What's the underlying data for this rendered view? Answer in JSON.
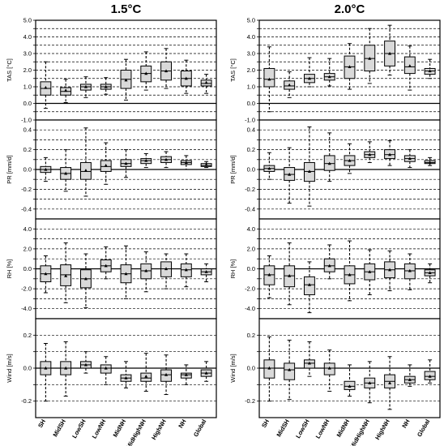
{
  "chart_data": {
    "type": "boxplot",
    "categories": [
      "SH",
      "MidSH",
      "LowSH",
      "LowNH",
      "MidNH",
      "MidHighNH",
      "HighNH",
      "NH",
      "Global"
    ],
    "columns": [
      {
        "title": "1.5°C",
        "panels": [
          {
            "ylabel": "TAS [°C]",
            "ylim": [
              -1.0,
              5.0
            ],
            "ticks": [
              -1.0,
              -0.5,
              0.0,
              0.5,
              1.0,
              1.5,
              2.0,
              2.5,
              3.0,
              3.5,
              4.0,
              4.5,
              5.0
            ],
            "tick_labels": [
              "-1.0",
              "",
              "0.0",
              "",
              "1.0",
              "",
              "2.0",
              "",
              "3.0",
              "",
              "4.0",
              "",
              "5.0"
            ],
            "boxes": [
              {
                "wlo": -0.3,
                "q1": 0.5,
                "med": 0.9,
                "q3": 1.3,
                "whi": 2.5,
                "mean": 0.95
              },
              {
                "wlo": 0.05,
                "q1": 0.5,
                "med": 0.72,
                "q3": 0.95,
                "whi": 1.45,
                "mean": 0.78
              },
              {
                "wlo": 0.35,
                "q1": 0.8,
                "med": 1.0,
                "q3": 1.15,
                "whi": 1.6,
                "mean": 1.0
              },
              {
                "wlo": 0.55,
                "q1": 0.85,
                "med": 1.0,
                "q3": 1.15,
                "whi": 1.55,
                "mean": 1.0
              },
              {
                "wlo": 0.2,
                "q1": 0.9,
                "med": 1.45,
                "q3": 2.0,
                "whi": 2.65,
                "mean": 1.4
              },
              {
                "wlo": 0.8,
                "q1": 1.3,
                "med": 1.8,
                "q3": 2.25,
                "whi": 3.1,
                "mean": 1.8
              },
              {
                "wlo": 0.9,
                "q1": 1.4,
                "med": 1.95,
                "q3": 2.5,
                "whi": 3.3,
                "mean": 1.95
              },
              {
                "wlo": 0.6,
                "q1": 1.05,
                "med": 1.5,
                "q3": 1.95,
                "whi": 2.6,
                "mean": 1.5
              },
              {
                "wlo": 0.6,
                "q1": 1.05,
                "med": 1.2,
                "q3": 1.4,
                "whi": 1.75,
                "mean": 1.25
              }
            ]
          },
          {
            "ylabel": "PR [mm/d]",
            "ylim": [
              -0.5,
              0.5
            ],
            "ticks": [
              -0.4,
              -0.3,
              -0.2,
              -0.1,
              0.0,
              0.1,
              0.2,
              0.3,
              0.4
            ],
            "tick_labels": [
              "-0.4",
              "",
              "-0.2",
              "",
              "0.0",
              "",
              "0.2",
              "",
              "0.4"
            ],
            "boxes": [
              {
                "wlo": -0.12,
                "q1": -0.03,
                "med": 0.0,
                "q3": 0.03,
                "whi": 0.12,
                "mean": 0.0
              },
              {
                "wlo": -0.22,
                "q1": -0.1,
                "med": -0.04,
                "q3": 0.02,
                "whi": 0.2,
                "mean": -0.04
              },
              {
                "wlo": -0.27,
                "q1": -0.1,
                "med": -0.02,
                "q3": 0.07,
                "whi": 0.42,
                "mean": -0.01
              },
              {
                "wlo": -0.15,
                "q1": -0.02,
                "med": 0.03,
                "q3": 0.09,
                "whi": 0.27,
                "mean": 0.04
              },
              {
                "wlo": -0.08,
                "q1": 0.03,
                "med": 0.06,
                "q3": 0.1,
                "whi": 0.2,
                "mean": 0.06
              },
              {
                "wlo": 0.02,
                "q1": 0.06,
                "med": 0.09,
                "q3": 0.11,
                "whi": 0.16,
                "mean": 0.09
              },
              {
                "wlo": 0.02,
                "q1": 0.07,
                "med": 0.1,
                "q3": 0.13,
                "whi": 0.18,
                "mean": 0.1
              },
              {
                "wlo": 0.0,
                "q1": 0.05,
                "med": 0.07,
                "q3": 0.09,
                "whi": 0.14,
                "mean": 0.07
              },
              {
                "wlo": 0.02,
                "q1": 0.03,
                "med": 0.04,
                "q3": 0.06,
                "whi": 0.08,
                "mean": 0.05
              }
            ]
          },
          {
            "ylabel": "RH [%]",
            "ylim": [
              -5.0,
              5.0
            ],
            "ticks": [
              -4.0,
              -3.0,
              -2.0,
              -1.0,
              0.0,
              1.0,
              2.0,
              3.0,
              4.0
            ],
            "tick_labels": [
              "-4.0",
              "",
              "-2.0",
              "",
              "0.0",
              "",
              "2.0",
              "",
              "4.0"
            ],
            "boxes": [
              {
                "wlo": -2.4,
                "q1": -1.3,
                "med": -0.5,
                "q3": 0.3,
                "whi": 1.3,
                "mean": -0.5
              },
              {
                "wlo": -3.4,
                "q1": -1.7,
                "med": -0.6,
                "q3": 0.4,
                "whi": 2.6,
                "mean": -0.7
              },
              {
                "wlo": -3.9,
                "q1": -1.9,
                "med": -1.0,
                "q3": -0.1,
                "whi": 1.5,
                "mean": -1.0
              },
              {
                "wlo": -1.0,
                "q1": -0.3,
                "med": 0.3,
                "q3": 0.9,
                "whi": 2.2,
                "mean": 0.3
              },
              {
                "wlo": -3.0,
                "q1": -1.4,
                "med": -0.5,
                "q3": 0.4,
                "whi": 2.3,
                "mean": -0.5
              },
              {
                "wlo": -2.3,
                "q1": -1.0,
                "med": -0.2,
                "q3": 0.5,
                "whi": 1.7,
                "mean": -0.2
              },
              {
                "wlo": -2.0,
                "q1": -0.8,
                "med": 0.0,
                "q3": 0.7,
                "whi": 1.5,
                "mean": 0.0
              },
              {
                "wlo": -1.8,
                "q1": -0.8,
                "med": -0.1,
                "q3": 0.5,
                "whi": 1.5,
                "mean": -0.1
              },
              {
                "wlo": -1.3,
                "q1": -0.6,
                "med": -0.3,
                "q3": 0.0,
                "whi": 0.5,
                "mean": -0.3
              }
            ]
          },
          {
            "ylabel": "Wind [m/s]",
            "ylim": [
              -0.3,
              0.3
            ],
            "ticks": [
              -0.2,
              -0.1,
              0.0,
              0.1,
              0.2
            ],
            "tick_labels": [
              "-0.2",
              "",
              "0.0",
              "",
              "0.2"
            ],
            "boxes": [
              {
                "wlo": -0.2,
                "q1": -0.04,
                "med": 0.0,
                "q3": 0.04,
                "whi": 0.15,
                "mean": 0.0
              },
              {
                "wlo": -0.17,
                "q1": -0.04,
                "med": 0.0,
                "q3": 0.04,
                "whi": 0.16,
                "mean": 0.0
              },
              {
                "wlo": -0.03,
                "q1": 0.0,
                "med": 0.02,
                "q3": 0.04,
                "whi": 0.1,
                "mean": 0.02
              },
              {
                "wlo": -0.1,
                "q1": -0.03,
                "med": 0.0,
                "q3": 0.02,
                "whi": 0.07,
                "mean": 0.0
              },
              {
                "wlo": -0.12,
                "q1": -0.08,
                "med": -0.06,
                "q3": -0.04,
                "whi": 0.04,
                "mean": -0.06
              },
              {
                "wlo": -0.14,
                "q1": -0.08,
                "med": -0.06,
                "q3": -0.03,
                "whi": 0.09,
                "mean": -0.05
              },
              {
                "wlo": -0.16,
                "q1": -0.08,
                "med": -0.04,
                "q3": -0.01,
                "whi": 0.08,
                "mean": -0.04
              },
              {
                "wlo": -0.1,
                "q1": -0.06,
                "med": -0.04,
                "q3": -0.03,
                "whi": 0.02,
                "mean": -0.04
              },
              {
                "wlo": -0.08,
                "q1": -0.05,
                "med": -0.03,
                "q3": -0.01,
                "whi": 0.04,
                "mean": -0.03
              }
            ]
          }
        ]
      },
      {
        "title": "2.0°C",
        "panels": [
          {
            "ylabel": "TAS [°C]",
            "ylim": [
              -1.0,
              5.0
            ],
            "ticks": [
              -1.0,
              -0.5,
              0.0,
              0.5,
              1.0,
              1.5,
              2.0,
              2.5,
              3.0,
              3.5,
              4.0,
              4.5,
              5.0
            ],
            "tick_labels": [
              "-1.0",
              "",
              "0.0",
              "",
              "1.0",
              "",
              "2.0",
              "",
              "3.0",
              "",
              "4.0",
              "",
              "5.0"
            ],
            "boxes": [
              {
                "wlo": -0.5,
                "q1": 1.0,
                "med": 1.45,
                "q3": 2.1,
                "whi": 3.4,
                "mean": 1.45
              },
              {
                "wlo": 0.35,
                "q1": 0.85,
                "med": 1.05,
                "q3": 1.35,
                "whi": 1.9,
                "mean": 1.1
              },
              {
                "wlo": 1.0,
                "q1": 1.25,
                "med": 1.5,
                "q3": 1.75,
                "whi": 2.75,
                "mean": 1.5
              },
              {
                "wlo": 1.05,
                "q1": 1.4,
                "med": 1.6,
                "q3": 1.8,
                "whi": 2.7,
                "mean": 1.6
              },
              {
                "wlo": 0.85,
                "q1": 1.5,
                "med": 2.2,
                "q3": 2.85,
                "whi": 3.6,
                "mean": 2.2
              },
              {
                "wlo": 1.2,
                "q1": 1.95,
                "med": 2.7,
                "q3": 3.5,
                "whi": 4.5,
                "mean": 2.7
              },
              {
                "wlo": 1.7,
                "q1": 2.25,
                "med": 3.0,
                "q3": 3.75,
                "whi": 4.7,
                "mean": 3.0
              },
              {
                "wlo": 0.8,
                "q1": 1.8,
                "med": 2.2,
                "q3": 2.8,
                "whi": 3.45,
                "mean": 2.25
              },
              {
                "wlo": 1.5,
                "q1": 1.75,
                "med": 1.95,
                "q3": 2.1,
                "whi": 2.65,
                "mean": 1.95
              }
            ]
          },
          {
            "ylabel": "PR [mm/d]",
            "ylim": [
              -0.5,
              0.5
            ],
            "ticks": [
              -0.4,
              -0.3,
              -0.2,
              -0.1,
              0.0,
              0.1,
              0.2,
              0.3,
              0.4
            ],
            "tick_labels": [
              "-0.4",
              "",
              "-0.2",
              "",
              "0.0",
              "",
              "0.2",
              "",
              "0.4"
            ],
            "boxes": [
              {
                "wlo": -0.1,
                "q1": -0.02,
                "med": 0.01,
                "q3": 0.04,
                "whi": 0.17,
                "mean": 0.01
              },
              {
                "wlo": -0.34,
                "q1": -0.11,
                "med": -0.05,
                "q3": 0.02,
                "whi": 0.22,
                "mean": -0.05
              },
              {
                "wlo": -0.37,
                "q1": -0.12,
                "med": -0.02,
                "q3": 0.07,
                "whi": 0.43,
                "mean": -0.02
              },
              {
                "wlo": -0.12,
                "q1": -0.01,
                "med": 0.06,
                "q3": 0.14,
                "whi": 0.37,
                "mean": 0.06
              },
              {
                "wlo": -0.04,
                "q1": 0.04,
                "med": 0.09,
                "q3": 0.14,
                "whi": 0.26,
                "mean": 0.09
              },
              {
                "wlo": 0.07,
                "q1": 0.12,
                "med": 0.15,
                "q3": 0.18,
                "whi": 0.28,
                "mean": 0.15
              },
              {
                "wlo": 0.04,
                "q1": 0.11,
                "med": 0.15,
                "q3": 0.2,
                "whi": 0.29,
                "mean": 0.15
              },
              {
                "wlo": 0.02,
                "q1": 0.08,
                "med": 0.11,
                "q3": 0.14,
                "whi": 0.2,
                "mean": 0.11
              },
              {
                "wlo": 0.04,
                "q1": 0.06,
                "med": 0.07,
                "q3": 0.09,
                "whi": 0.12,
                "mean": 0.07
              }
            ]
          },
          {
            "ylabel": "RH [%]",
            "ylim": [
              -5.0,
              5.0
            ],
            "ticks": [
              -4.0,
              -3.0,
              -2.0,
              -1.0,
              0.0,
              1.0,
              2.0,
              3.0,
              4.0
            ],
            "tick_labels": [
              "-4.0",
              "",
              "-2.0",
              "",
              "0.0",
              "",
              "2.0",
              "",
              "4.0"
            ],
            "boxes": [
              {
                "wlo": -2.9,
                "q1": -1.6,
                "med": -0.6,
                "q3": 0.3,
                "whi": 1.3,
                "mean": -0.6
              },
              {
                "wlo": -3.6,
                "q1": -1.8,
                "med": -0.7,
                "q3": 0.3,
                "whi": 2.6,
                "mean": -0.7
              },
              {
                "wlo": -4.4,
                "q1": -2.6,
                "med": -1.6,
                "q3": -0.8,
                "whi": 0.7,
                "mean": -1.6
              },
              {
                "wlo": -1.0,
                "q1": -0.3,
                "med": 0.3,
                "q3": 1.0,
                "whi": 2.4,
                "mean": 0.3
              },
              {
                "wlo": -3.2,
                "q1": -1.5,
                "med": -0.6,
                "q3": 0.3,
                "whi": 2.8,
                "mean": -0.6
              },
              {
                "wlo": -2.6,
                "q1": -1.1,
                "med": -0.3,
                "q3": 0.5,
                "whi": 1.9,
                "mean": -0.3
              },
              {
                "wlo": -2.2,
                "q1": -0.9,
                "med": -0.1,
                "q3": 0.7,
                "whi": 1.8,
                "mean": -0.1
              },
              {
                "wlo": -2.1,
                "q1": -1.0,
                "med": -0.2,
                "q3": 0.5,
                "whi": 1.5,
                "mean": -0.2
              },
              {
                "wlo": -1.4,
                "q1": -0.7,
                "med": -0.4,
                "q3": -0.1,
                "whi": 0.5,
                "mean": -0.4
              }
            ]
          },
          {
            "ylabel": "Wind [m/s]",
            "ylim": [
              -0.3,
              0.3
            ],
            "ticks": [
              -0.2,
              -0.1,
              0.0,
              0.1,
              0.2
            ],
            "tick_labels": [
              "-0.2",
              "",
              "0.0",
              "",
              "0.2"
            ],
            "boxes": [
              {
                "wlo": -0.2,
                "q1": -0.06,
                "med": 0.0,
                "q3": 0.05,
                "whi": 0.19,
                "mean": 0.0
              },
              {
                "wlo": -0.19,
                "q1": -0.07,
                "med": -0.01,
                "q3": 0.03,
                "whi": 0.17,
                "mean": -0.01
              },
              {
                "wlo": -0.05,
                "q1": 0.0,
                "med": 0.03,
                "q3": 0.05,
                "whi": 0.16,
                "mean": 0.03
              },
              {
                "wlo": -0.14,
                "q1": -0.04,
                "med": 0.0,
                "q3": 0.03,
                "whi": 0.11,
                "mean": 0.0
              },
              {
                "wlo": -0.17,
                "q1": -0.13,
                "med": -0.11,
                "q3": -0.08,
                "whi": 0.02,
                "mean": -0.11
              },
              {
                "wlo": -0.21,
                "q1": -0.12,
                "med": -0.09,
                "q3": -0.06,
                "whi": 0.04,
                "mean": -0.09
              },
              {
                "wlo": -0.25,
                "q1": -0.12,
                "med": -0.08,
                "q3": -0.04,
                "whi": 0.07,
                "mean": -0.09
              },
              {
                "wlo": -0.11,
                "q1": -0.09,
                "med": -0.07,
                "q3": -0.05,
                "whi": 0.02,
                "mean": -0.07
              },
              {
                "wlo": -0.09,
                "q1": -0.07,
                "med": -0.05,
                "q3": -0.02,
                "whi": 0.05,
                "mean": -0.05
              }
            ]
          }
        ]
      }
    ]
  },
  "colors": {
    "box_fill": "#d9d9d9",
    "stroke": "#000000"
  }
}
